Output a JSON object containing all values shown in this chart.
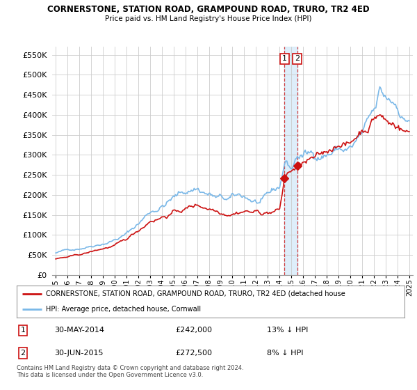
{
  "title": "CORNERSTONE, STATION ROAD, GRAMPOUND ROAD, TRURO, TR2 4ED",
  "subtitle": "Price paid vs. HM Land Registry's House Price Index (HPI)",
  "ylim": [
    0,
    570000
  ],
  "yticks": [
    0,
    50000,
    100000,
    150000,
    200000,
    250000,
    300000,
    350000,
    400000,
    450000,
    500000,
    550000
  ],
  "ytick_labels": [
    "£0",
    "£50K",
    "£100K",
    "£150K",
    "£200K",
    "£250K",
    "£300K",
    "£350K",
    "£400K",
    "£450K",
    "£500K",
    "£550K"
  ],
  "hpi_color": "#7ab8e8",
  "price_color": "#cc1111",
  "dashed_line_color": "#cc1111",
  "background_color": "#ffffff",
  "grid_color": "#cccccc",
  "legend_label_price": "CORNERSTONE, STATION ROAD, GRAMPOUND ROAD, TRURO, TR2 4ED (detached house",
  "legend_label_hpi": "HPI: Average price, detached house, Cornwall",
  "transaction1_date": "30-MAY-2014",
  "transaction1_price": "£242,000",
  "transaction1_hpi": "13% ↓ HPI",
  "transaction2_date": "30-JUN-2015",
  "transaction2_price": "£272,500",
  "transaction2_hpi": "8% ↓ HPI",
  "footer": "Contains HM Land Registry data © Crown copyright and database right 2024.\nThis data is licensed under the Open Government Licence v3.0.",
  "sale1_x": 2014.41,
  "sale1_y": 242000,
  "sale2_x": 2015.5,
  "sale2_y": 272500,
  "xlim_left": 1994.7,
  "xlim_right": 2025.3
}
